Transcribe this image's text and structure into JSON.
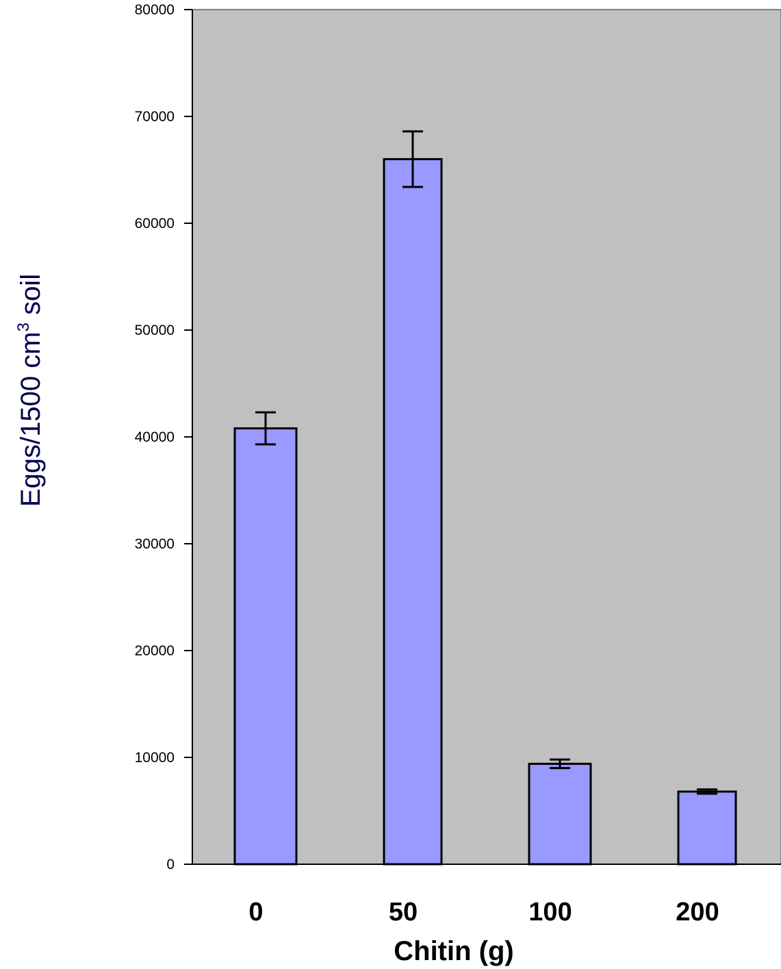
{
  "chart_data": {
    "type": "bar",
    "categories": [
      "0",
      "50",
      "100",
      "200"
    ],
    "values": [
      40800,
      66000,
      9400,
      6800
    ],
    "errors": [
      1500,
      2600,
      400,
      200
    ],
    "xlabel": "Chitin (g)",
    "ylabel": {
      "prefix": "Eggs/1500 cm",
      "sup": "3",
      "suffix": " soil"
    },
    "ylim": [
      0,
      80000
    ],
    "yticks": [
      "0",
      "10000",
      "20000",
      "30000",
      "40000",
      "50000",
      "60000",
      "70000",
      "80000"
    ],
    "grid": false,
    "legend": "none",
    "colors": {
      "plot_bg": "#c0c0c0",
      "bar_fill": "#9999ff",
      "bar_stroke": "#000000"
    }
  }
}
